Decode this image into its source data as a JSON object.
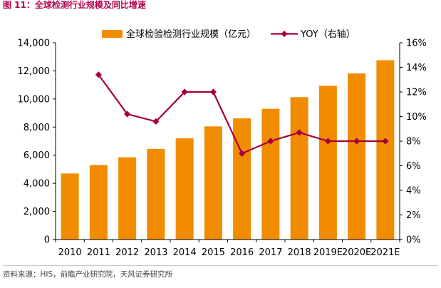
{
  "figure_title": "图 11：全球检测行业规模及同比增速",
  "source_note": "资料来源：HIS，前瞻产业研究院，天风证券研究所",
  "colors": {
    "bar": "#f18c00",
    "line": "#a5003a",
    "title": "#b4004e"
  },
  "chart_data": {
    "type": "bar",
    "title": "全球检测行业规模及同比增速",
    "categories": [
      "2010",
      "2011",
      "2012",
      "2013",
      "2014",
      "2015",
      "2016",
      "2017",
      "2018",
      "2019E",
      "2020E",
      "2021E"
    ],
    "series": [
      {
        "name": "全球检验检测行业规模（亿元）",
        "type": "bar",
        "axis": "left",
        "values": [
          4700,
          5300,
          5850,
          6450,
          7200,
          8050,
          8620,
          9300,
          10130,
          10940,
          11820,
          12760
        ]
      },
      {
        "name": "YOY（右轴）",
        "type": "line",
        "axis": "right",
        "values": [
          null,
          13.4,
          10.2,
          9.6,
          12.0,
          12.0,
          7.0,
          8.0,
          8.7,
          8.0,
          8.0,
          8.0
        ]
      }
    ],
    "ylim_left": [
      0,
      14000
    ],
    "yticks_left": [
      "0",
      "2,000",
      "4,000",
      "6,000",
      "8,000",
      "10,000",
      "12,000",
      "14,000"
    ],
    "ylim_right": [
      0,
      16
    ],
    "yticks_right": [
      "0%",
      "2%",
      "4%",
      "6%",
      "8%",
      "10%",
      "12%",
      "14%",
      "16%"
    ],
    "grid": false,
    "legend_position": "top-center"
  }
}
